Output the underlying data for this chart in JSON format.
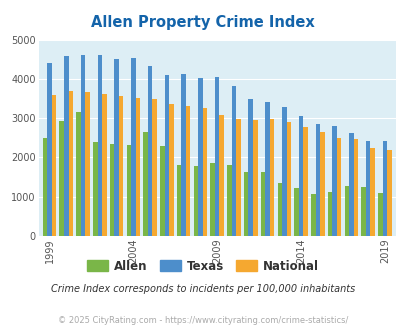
{
  "title": "Allen Property Crime Index",
  "title_color": "#1464aa",
  "subtitle": "Crime Index corresponds to incidents per 100,000 inhabitants",
  "subtitle_color": "#333333",
  "footer": "© 2025 CityRating.com - https://www.cityrating.com/crime-statistics/",
  "footer_color": "#aaaaaa",
  "years": [
    1999,
    2000,
    2001,
    2002,
    2003,
    2004,
    2005,
    2006,
    2007,
    2008,
    2009,
    2010,
    2011,
    2012,
    2013,
    2014,
    2015,
    2016,
    2017,
    2018,
    2019
  ],
  "allen": [
    2500,
    2920,
    3150,
    2400,
    2340,
    2310,
    2640,
    2280,
    1800,
    1790,
    1850,
    1810,
    1630,
    1620,
    1350,
    1220,
    1070,
    1130,
    1280,
    1250,
    1090
  ],
  "texas": [
    4400,
    4580,
    4620,
    4620,
    4510,
    4520,
    4320,
    4100,
    4120,
    4010,
    4050,
    3820,
    3490,
    3410,
    3280,
    3060,
    2860,
    2810,
    2620,
    2430,
    2410
  ],
  "national": [
    3600,
    3680,
    3670,
    3610,
    3560,
    3510,
    3490,
    3360,
    3310,
    3260,
    3080,
    2990,
    2960,
    2970,
    2890,
    2780,
    2640,
    2500,
    2470,
    2240,
    2180
  ],
  "allen_color": "#7ab648",
  "texas_color": "#4d8ecb",
  "national_color": "#f5a830",
  "bg_color": "#ddeef5",
  "ylim": [
    0,
    5000
  ],
  "yticks": [
    0,
    1000,
    2000,
    3000,
    4000,
    5000
  ],
  "bar_width": 0.27,
  "legend_labels": [
    "Allen",
    "Texas",
    "National"
  ]
}
